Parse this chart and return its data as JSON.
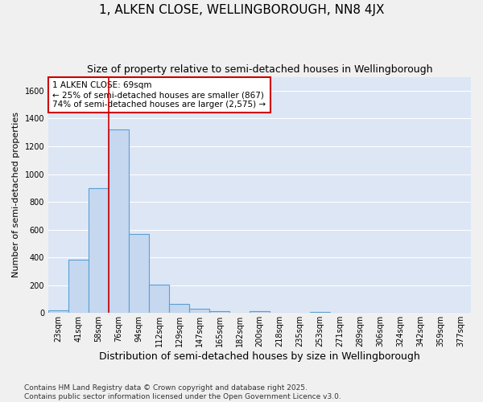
{
  "title": "1, ALKEN CLOSE, WELLINGBOROUGH, NN8 4JX",
  "subtitle": "Size of property relative to semi-detached houses in Wellingborough",
  "xlabel": "Distribution of semi-detached houses by size in Wellingborough",
  "ylabel": "Number of semi-detached properties",
  "bar_color": "#c5d8f0",
  "bar_edge_color": "#5a9fd4",
  "annotation_text": "1 ALKEN CLOSE: 69sqm\n← 25% of semi-detached houses are smaller (867)\n74% of semi-detached houses are larger (2,575) →",
  "annotation_box_color": "#ffffff",
  "annotation_box_edge": "#cc0000",
  "vline_color": "#cc0000",
  "categories": [
    "23sqm",
    "41sqm",
    "58sqm",
    "76sqm",
    "94sqm",
    "112sqm",
    "129sqm",
    "147sqm",
    "165sqm",
    "182sqm",
    "200sqm",
    "218sqm",
    "235sqm",
    "253sqm",
    "271sqm",
    "289sqm",
    "306sqm",
    "324sqm",
    "342sqm",
    "359sqm",
    "377sqm"
  ],
  "values": [
    20,
    385,
    900,
    1320,
    570,
    205,
    65,
    30,
    15,
    0,
    15,
    0,
    0,
    10,
    0,
    0,
    0,
    0,
    0,
    0,
    0
  ],
  "ylim": [
    0,
    1700
  ],
  "yticks": [
    0,
    200,
    400,
    600,
    800,
    1000,
    1200,
    1400,
    1600
  ],
  "background_color": "#dce6f5",
  "grid_color": "#ffffff",
  "fig_background": "#f0f0f0",
  "footer": "Contains HM Land Registry data © Crown copyright and database right 2025.\nContains public sector information licensed under the Open Government Licence v3.0.",
  "title_fontsize": 11,
  "subtitle_fontsize": 9,
  "xlabel_fontsize": 9,
  "ylabel_fontsize": 8,
  "tick_fontsize": 7,
  "footer_fontsize": 6.5,
  "vline_bar_index": 3
}
